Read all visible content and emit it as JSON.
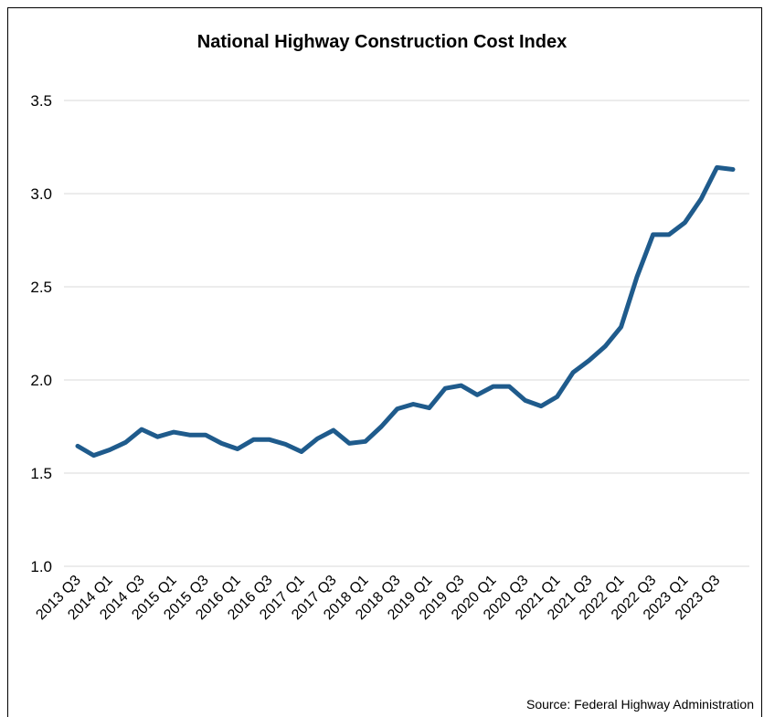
{
  "chart_data": {
    "type": "line",
    "title": "National Highway Construction Cost Index",
    "source": "Source: Federal Highway Administration",
    "categories": [
      "2013 Q3",
      null,
      "2014 Q1",
      null,
      "2014 Q3",
      null,
      "2015 Q1",
      null,
      "2015 Q3",
      null,
      "2016 Q1",
      null,
      "2016 Q3",
      null,
      "2017 Q1",
      null,
      "2017 Q3",
      null,
      "2018 Q1",
      null,
      "2018 Q3",
      null,
      "2019 Q1",
      null,
      "2019 Q3",
      null,
      "2020 Q1",
      null,
      "2020 Q3",
      null,
      "2021 Q1",
      null,
      "2021 Q3",
      null,
      "2022 Q1",
      null,
      "2022 Q3",
      null,
      "2023 Q1",
      null,
      "2023 Q3",
      null
    ],
    "series": [
      {
        "name": "National Highway Construction Cost Index",
        "color": "#1f5b8c",
        "values": [
          1.645,
          1.595,
          1.625,
          1.665,
          1.735,
          1.695,
          1.72,
          1.705,
          1.705,
          1.66,
          1.63,
          1.68,
          1.68,
          1.655,
          1.615,
          1.685,
          1.73,
          1.66,
          1.67,
          1.75,
          1.845,
          1.87,
          1.85,
          1.955,
          1.97,
          1.92,
          1.965,
          1.965,
          1.89,
          1.86,
          1.91,
          2.04,
          2.105,
          2.18,
          2.285,
          2.555,
          2.78,
          2.78,
          2.845,
          2.97,
          3.14,
          3.13
        ]
      }
    ],
    "ylim": [
      1,
      3.5
    ],
    "yticks": [
      {
        "value": 1,
        "label": "1.0"
      },
      1.5,
      {
        "value": 2,
        "label": "2.0"
      },
      2.5,
      {
        "value": 3,
        "label": "3.0"
      },
      3.5
    ],
    "grid": true
  }
}
